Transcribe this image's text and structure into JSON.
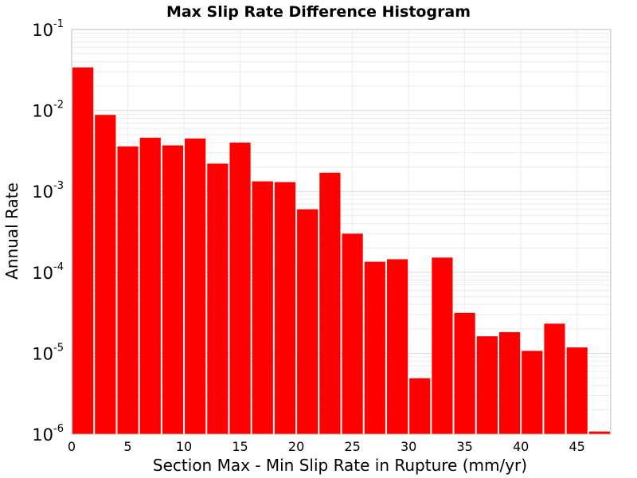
{
  "chart_data": {
    "type": "bar",
    "title": "Max Slip Rate Difference Histogram",
    "xlabel": "Section Max - Min Slip Rate in Rupture (mm/yr)",
    "ylabel": "Annual Rate",
    "y_scale": "log",
    "ylim": [
      1e-06,
      0.1
    ],
    "xlim": [
      0,
      48
    ],
    "bin_width": 2,
    "x_ticks": [
      "0",
      "5",
      "10",
      "15",
      "20",
      "25",
      "30",
      "35",
      "40",
      "45"
    ],
    "y_ticks": [
      {
        "base": "10",
        "exp": "-6",
        "value": 1e-06
      },
      {
        "base": "10",
        "exp": "-5",
        "value": 1e-05
      },
      {
        "base": "10",
        "exp": "-4",
        "value": 0.0001
      },
      {
        "base": "10",
        "exp": "-3",
        "value": 0.001
      },
      {
        "base": "10",
        "exp": "-2",
        "value": 0.01
      },
      {
        "base": "10",
        "exp": "-1",
        "value": 0.1
      }
    ],
    "bar_color": "#ff0000",
    "grid": true,
    "bins": [
      {
        "x": 1,
        "value": 0.034
      },
      {
        "x": 3,
        "value": 0.0088
      },
      {
        "x": 5,
        "value": 0.0036
      },
      {
        "x": 7,
        "value": 0.0046
      },
      {
        "x": 9,
        "value": 0.0037
      },
      {
        "x": 11,
        "value": 0.0045
      },
      {
        "x": 13,
        "value": 0.0022
      },
      {
        "x": 15,
        "value": 0.004
      },
      {
        "x": 17,
        "value": 0.00133
      },
      {
        "x": 19,
        "value": 0.0013
      },
      {
        "x": 21,
        "value": 0.0006
      },
      {
        "x": 23,
        "value": 0.0017
      },
      {
        "x": 25,
        "value": 0.0003
      },
      {
        "x": 27,
        "value": 0.000135
      },
      {
        "x": 29,
        "value": 0.000145
      },
      {
        "x": 31,
        "value": 4.9e-06
      },
      {
        "x": 33,
        "value": 0.000152
      },
      {
        "x": 35,
        "value": 3.15e-05
      },
      {
        "x": 37,
        "value": 1.62e-05
      },
      {
        "x": 39,
        "value": 1.82e-05
      },
      {
        "x": 41,
        "value": 1.07e-05
      },
      {
        "x": 43,
        "value": 2.32e-05
      },
      {
        "x": 45,
        "value": 1.18e-05
      },
      {
        "x": 47,
        "value": 1.08e-06
      }
    ]
  }
}
